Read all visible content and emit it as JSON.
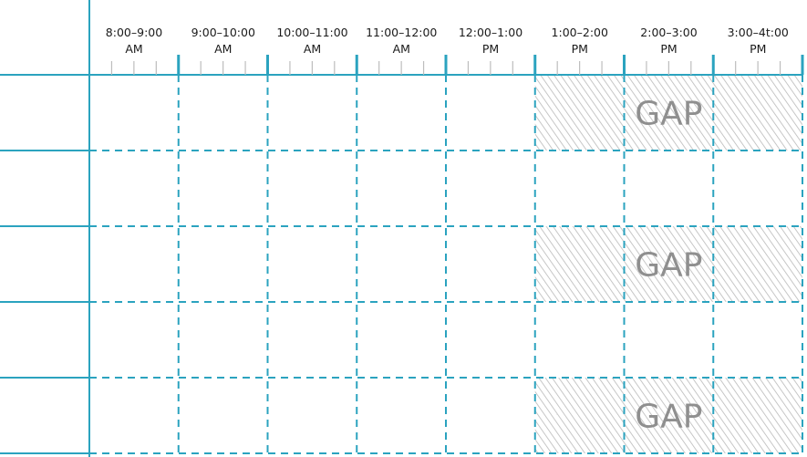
{
  "colors": {
    "grid_line": "#2ba3bf",
    "gap_hatch": "#b9b9b9",
    "gap_text": "#8f8f8f",
    "label_text": "#1a1a1a"
  },
  "time_slots": [
    {
      "time": "8:00–9:00",
      "period": "AM"
    },
    {
      "time": "9:00–10:00",
      "period": "AM"
    },
    {
      "time": "10:00–11:00",
      "period": "AM"
    },
    {
      "time": "11:00–12:00",
      "period": "AM"
    },
    {
      "time": "12:00–1:00",
      "period": "PM"
    },
    {
      "time": "1:00–2:00",
      "period": "PM"
    },
    {
      "time": "2:00–3:00",
      "period": "PM"
    },
    {
      "time": "3:00–4t:00",
      "period": "PM"
    }
  ],
  "row_count": 5,
  "gaps": [
    {
      "row": 0,
      "start_slot": 5,
      "end_slot": 8,
      "label": "GAP"
    },
    {
      "row": 2,
      "start_slot": 5,
      "end_slot": 8,
      "label": "GAP"
    },
    {
      "row": 4,
      "start_slot": 5,
      "end_slot": 8,
      "label": "GAP"
    }
  ]
}
